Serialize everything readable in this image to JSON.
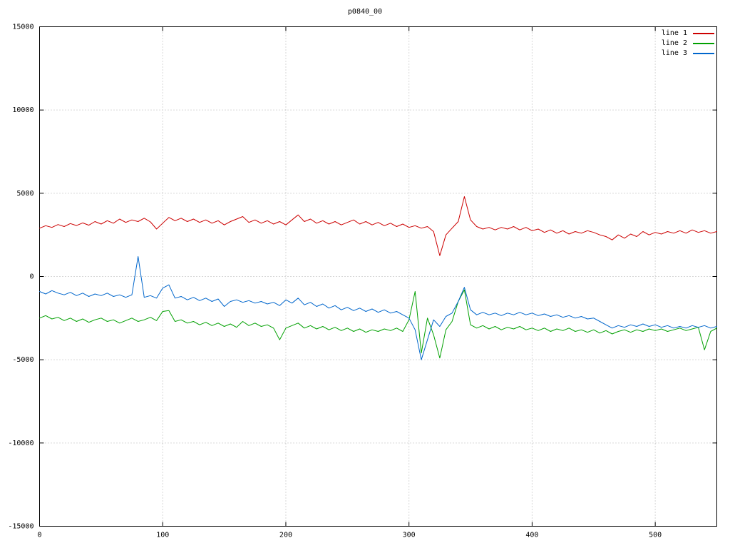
{
  "chart_data": {
    "type": "line",
    "title": "p0840_00",
    "xlabel": "",
    "ylabel": "",
    "xlim": [
      0,
      550
    ],
    "ylim": [
      -15000,
      15000
    ],
    "xticks": [
      0,
      100,
      200,
      300,
      400,
      500
    ],
    "yticks": [
      -15000,
      -10000,
      -5000,
      0,
      5000,
      10000,
      15000
    ],
    "grid": true,
    "grid_style": "dotted",
    "legend_position": "top-right",
    "background_color": "#ffffff",
    "border_color": "#000000",
    "grid_color": "#b0b0b0",
    "x_start": 0,
    "x_step": 5,
    "series": [
      {
        "name": "line 1",
        "color": "#cc0000",
        "values": [
          2900,
          3050,
          2950,
          3120,
          3000,
          3180,
          3060,
          3220,
          3080,
          3300,
          3150,
          3350,
          3200,
          3450,
          3250,
          3400,
          3300,
          3500,
          3280,
          2850,
          3200,
          3550,
          3350,
          3500,
          3300,
          3450,
          3250,
          3400,
          3200,
          3350,
          3100,
          3300,
          3450,
          3600,
          3250,
          3400,
          3200,
          3350,
          3150,
          3300,
          3100,
          3400,
          3700,
          3300,
          3450,
          3200,
          3350,
          3150,
          3300,
          3100,
          3250,
          3400,
          3150,
          3300,
          3100,
          3250,
          3050,
          3200,
          3000,
          3150,
          2950,
          3050,
          2900,
          3000,
          2700,
          1250,
          2500,
          2900,
          3300,
          4800,
          3400,
          3000,
          2850,
          2950,
          2800,
          2950,
          2850,
          3000,
          2800,
          2950,
          2750,
          2850,
          2650,
          2800,
          2600,
          2750,
          2550,
          2700,
          2600,
          2750,
          2650,
          2500,
          2400,
          2200,
          2500,
          2300,
          2550,
          2400,
          2700,
          2500,
          2650,
          2550,
          2700,
          2600,
          2750,
          2600,
          2800,
          2650,
          2750,
          2600,
          2700
        ]
      },
      {
        "name": "line 2",
        "color": "#00a000",
        "values": [
          -2500,
          -2350,
          -2550,
          -2450,
          -2650,
          -2500,
          -2700,
          -2550,
          -2750,
          -2600,
          -2500,
          -2700,
          -2600,
          -2800,
          -2650,
          -2500,
          -2700,
          -2600,
          -2450,
          -2650,
          -2100,
          -2050,
          -2700,
          -2600,
          -2800,
          -2700,
          -2900,
          -2750,
          -2950,
          -2800,
          -3000,
          -2850,
          -3050,
          -2700,
          -2950,
          -2800,
          -3000,
          -2900,
          -3100,
          -3800,
          -3100,
          -2950,
          -2800,
          -3100,
          -2950,
          -3150,
          -3000,
          -3200,
          -3050,
          -3250,
          -3100,
          -3300,
          -3150,
          -3350,
          -3200,
          -3300,
          -3150,
          -3250,
          -3100,
          -3300,
          -2600,
          -900,
          -4600,
          -2500,
          -3500,
          -4900,
          -3200,
          -2700,
          -1500,
          -800,
          -2900,
          -3100,
          -2950,
          -3150,
          -3000,
          -3200,
          -3050,
          -3150,
          -3000,
          -3200,
          -3100,
          -3250,
          -3100,
          -3300,
          -3150,
          -3250,
          -3100,
          -3300,
          -3200,
          -3350,
          -3200,
          -3400,
          -3250,
          -3450,
          -3300,
          -3200,
          -3350,
          -3200,
          -3300,
          -3150,
          -3250,
          -3150,
          -3300,
          -3200,
          -3100,
          -3250,
          -3150,
          -3050,
          -4400,
          -3300,
          -3100
        ]
      },
      {
        "name": "line 3",
        "color": "#0066cc",
        "values": [
          -900,
          -1050,
          -850,
          -1000,
          -1100,
          -950,
          -1150,
          -1000,
          -1200,
          -1050,
          -1150,
          -1000,
          -1200,
          -1100,
          -1250,
          -1100,
          1200,
          -1250,
          -1150,
          -1300,
          -700,
          -500,
          -1300,
          -1200,
          -1400,
          -1250,
          -1450,
          -1300,
          -1500,
          -1350,
          -1800,
          -1500,
          -1400,
          -1550,
          -1450,
          -1600,
          -1500,
          -1650,
          -1550,
          -1750,
          -1400,
          -1600,
          -1300,
          -1700,
          -1550,
          -1800,
          -1650,
          -1900,
          -1750,
          -2000,
          -1850,
          -2050,
          -1900,
          -2100,
          -1950,
          -2150,
          -2000,
          -2200,
          -2100,
          -2300,
          -2500,
          -3200,
          -5000,
          -3800,
          -2600,
          -3000,
          -2400,
          -2200,
          -1500,
          -650,
          -2000,
          -2300,
          -2150,
          -2300,
          -2200,
          -2350,
          -2200,
          -2300,
          -2150,
          -2300,
          -2200,
          -2350,
          -2250,
          -2400,
          -2300,
          -2450,
          -2350,
          -2500,
          -2400,
          -2550,
          -2500,
          -2700,
          -2900,
          -3100,
          -2950,
          -3050,
          -2900,
          -3000,
          -2850,
          -3000,
          -2900,
          -3050,
          -2950,
          -3100,
          -3000,
          -3100,
          -2950,
          -3050,
          -2950,
          -3100,
          -3000
        ]
      }
    ]
  }
}
